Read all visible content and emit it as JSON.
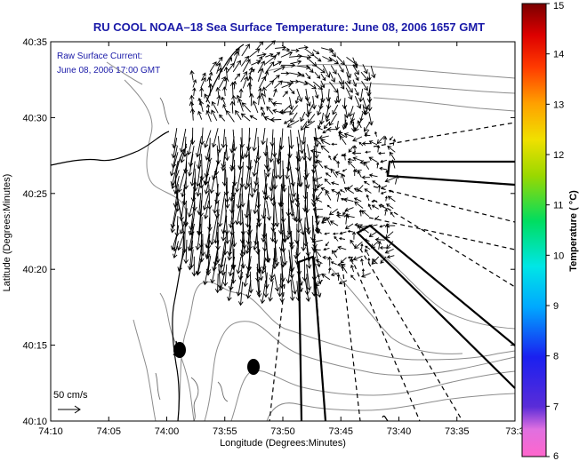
{
  "title": "RU COOL  NOAA–18  Sea Surface Temperature:  June 08, 2006 1657 GMT",
  "annotation": {
    "line1": "Raw Surface Current:",
    "line2": "June 08, 2006 17:00 GMT"
  },
  "scale_label": "50 cm/s",
  "x_axis": {
    "label": "Longitude (Degrees:Minutes)",
    "ticks": [
      "74:10",
      "74:05",
      "74:00",
      "73:55",
      "73:50",
      "73:45",
      "73:40",
      "73:35",
      "73:3"
    ]
  },
  "y_axis": {
    "label": "Latitude (Degrees:Minutes)",
    "ticks": [
      "40:35",
      "40:30",
      "40:25",
      "40:20",
      "40:15",
      "40:10"
    ]
  },
  "colorbar": {
    "label": "Temperature ( °C)",
    "ticks": [
      "15",
      "14",
      "13",
      "12",
      "11",
      "10",
      "9",
      "8",
      "7",
      "6"
    ],
    "min": 6,
    "max": 15
  },
  "chart_data": {
    "type": "vector_field_map",
    "title": "RU COOL  NOAA–18  Sea Surface Temperature:  June 08, 2006 1657 GMT",
    "xlabel": "Longitude (Degrees:Minutes)",
    "ylabel": "Latitude (Degrees:Minutes)",
    "xlim": [
      "74:10",
      "73:30"
    ],
    "ylim": [
      "40:10",
      "40:35"
    ],
    "colorbar_range": [
      6,
      15
    ],
    "grid": false
  }
}
